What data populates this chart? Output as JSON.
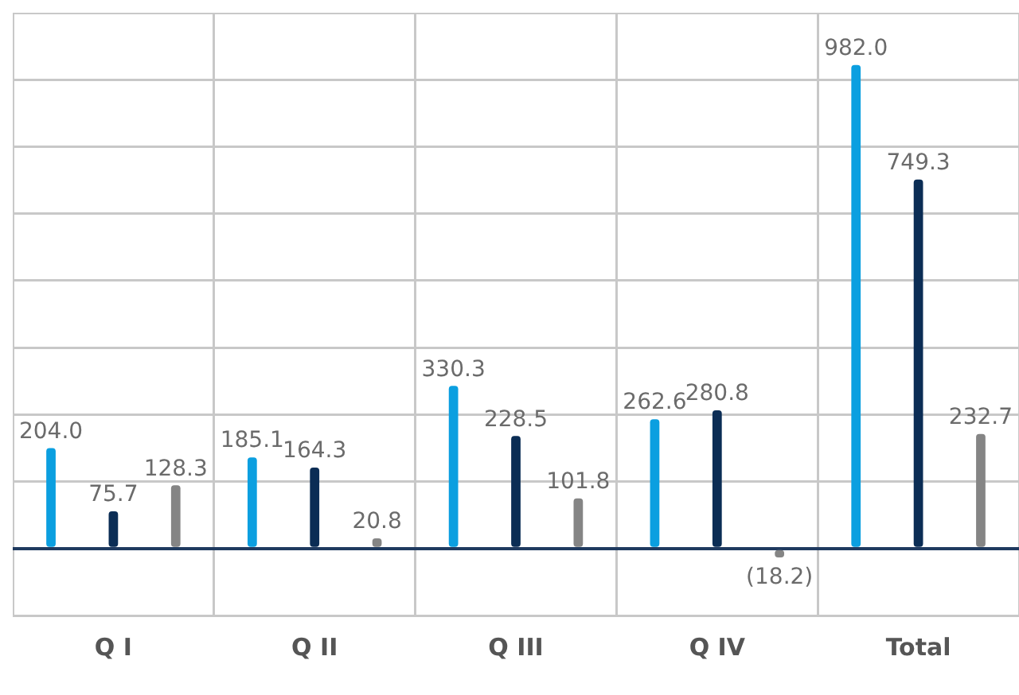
{
  "chart_data": {
    "type": "bar",
    "categories": [
      "Q I",
      "Q II",
      "Q III",
      "Q IV",
      "Total"
    ],
    "series": [
      {
        "color": "#0b9fe0",
        "values": [
          204.0,
          185.1,
          330.3,
          262.6,
          982.0
        ],
        "value_labels": [
          "204.0",
          "185.1",
          "330.3",
          "262.6",
          "982.0"
        ]
      },
      {
        "color": "#0b2d55",
        "values": [
          75.7,
          164.3,
          228.5,
          280.8,
          749.3
        ],
        "value_labels": [
          "75.7",
          "164.3",
          "228.5",
          "280.8",
          "749.3"
        ]
      },
      {
        "color": "#858585",
        "values": [
          128.3,
          20.8,
          101.8,
          -18.2,
          232.7
        ],
        "value_labels": [
          "128.3",
          "20.8",
          "101.8",
          "(18.2)",
          "232.7"
        ]
      }
    ],
    "ylim": [
      -136,
      1088
    ],
    "yticks": [
      {
        "value": -136,
        "label": null
      },
      {
        "value": 0,
        "label": null
      },
      {
        "value": 136,
        "label": null
      },
      {
        "value": 272,
        "label": null
      },
      {
        "value": 408,
        "label": null
      },
      {
        "value": 544,
        "label": null
      },
      {
        "value": 680,
        "label": null
      },
      {
        "value": 816,
        "label": null
      },
      {
        "value": 952,
        "label": null
      },
      {
        "value": 1088,
        "label": null
      }
    ],
    "tick_labels": "x",
    "grid": true,
    "legend": false
  }
}
